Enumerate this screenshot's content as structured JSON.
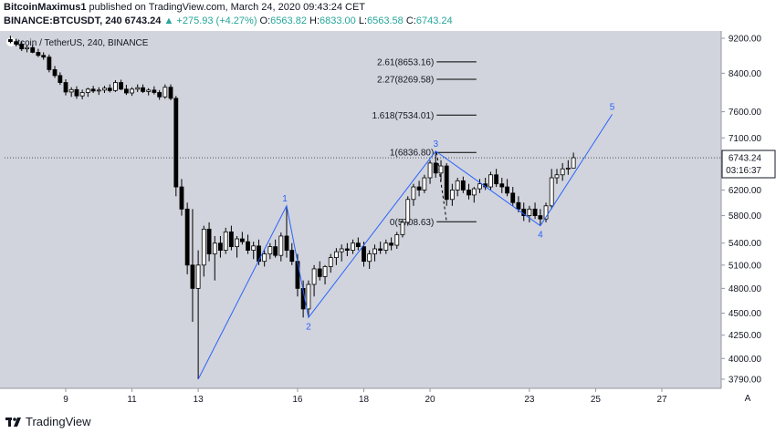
{
  "header": {
    "author": "BitcoinMaximus1",
    "published_text": "published on TradingView.com, March 24, 2020 09:43:24 CET",
    "symbol": "BINANCE:BTCUSDT, 240",
    "last": "6743.24",
    "change": "▲ +275.93 (+4.27%)",
    "o_label": "O:",
    "o_value": "6563.82",
    "h_label": "H:",
    "h_value": "6833.00",
    "l_label": "L:",
    "l_value": "6563.58",
    "c_label": "C:",
    "c_value": "6743.24"
  },
  "footer": {
    "brand": "TradingView"
  },
  "chart_data": {
    "type": "candlestick",
    "title": "itcoin / TetherUS, 240, BINANCE",
    "background": "#d1d4dc",
    "colors": {
      "up_fill": "#ffffff",
      "down_fill": "#000000",
      "outline": "#000000",
      "wave": "#2962ff",
      "fib": "#000000"
    },
    "x_ticks": [
      {
        "day": 9,
        "label": "9"
      },
      {
        "day": 11,
        "label": "11"
      },
      {
        "day": 13,
        "label": "13"
      },
      {
        "day": 16,
        "label": "16"
      },
      {
        "day": 18,
        "label": "18"
      },
      {
        "day": 20,
        "label": "20"
      },
      {
        "day": 23,
        "label": "23"
      },
      {
        "day": 25,
        "label": "25"
      },
      {
        "day": 27,
        "label": "27"
      }
    ],
    "x_range_days": [
      7.0,
      29.2
    ],
    "y_ticks": [
      {
        "value": 9200,
        "label": "9200.00"
      },
      {
        "value": 8400,
        "label": "8400.00"
      },
      {
        "value": 7600,
        "label": "7600.00"
      },
      {
        "value": 7100,
        "label": "7100.00"
      },
      {
        "value": 6200,
        "label": "6200.00"
      },
      {
        "value": 5800,
        "label": "5800.00"
      },
      {
        "value": 5400,
        "label": "5400.00"
      },
      {
        "value": 5100,
        "label": "5100.00"
      },
      {
        "value": 4800,
        "label": "4800.00"
      },
      {
        "value": 4500,
        "label": "4500.00"
      },
      {
        "value": 4250,
        "label": "4250.00"
      },
      {
        "value": 4000,
        "label": "4000.00"
      },
      {
        "value": 3790,
        "label": "3790.00"
      }
    ],
    "y_scale": "log",
    "last_price": {
      "label": "6743.24",
      "countdown": "03:16:37",
      "value": 6743.24
    },
    "axis_auto_label": "A",
    "candles": [
      {
        "t": 7.33,
        "o": 9170,
        "h": 9260,
        "l": 9080,
        "c": 9120
      },
      {
        "t": 7.5,
        "o": 9120,
        "h": 9180,
        "l": 9010,
        "c": 9060
      },
      {
        "t": 7.67,
        "o": 9060,
        "h": 9120,
        "l": 8900,
        "c": 8950
      },
      {
        "t": 7.83,
        "o": 8950,
        "h": 9030,
        "l": 8870,
        "c": 8980
      },
      {
        "t": 8.0,
        "o": 8980,
        "h": 9050,
        "l": 8850,
        "c": 8870
      },
      {
        "t": 8.17,
        "o": 8870,
        "h": 8950,
        "l": 8760,
        "c": 8800
      },
      {
        "t": 8.33,
        "o": 8800,
        "h": 8870,
        "l": 8700,
        "c": 8760
      },
      {
        "t": 8.5,
        "o": 8760,
        "h": 8820,
        "l": 8420,
        "c": 8480
      },
      {
        "t": 8.67,
        "o": 8480,
        "h": 8560,
        "l": 8300,
        "c": 8350
      },
      {
        "t": 8.83,
        "o": 8350,
        "h": 8420,
        "l": 8150,
        "c": 8200
      },
      {
        "t": 9.0,
        "o": 8200,
        "h": 8270,
        "l": 7930,
        "c": 8000
      },
      {
        "t": 9.17,
        "o": 8000,
        "h": 8100,
        "l": 7900,
        "c": 8050
      },
      {
        "t": 9.33,
        "o": 8050,
        "h": 8120,
        "l": 7860,
        "c": 7920
      },
      {
        "t": 9.5,
        "o": 7920,
        "h": 8050,
        "l": 7850,
        "c": 7990
      },
      {
        "t": 9.67,
        "o": 7990,
        "h": 8090,
        "l": 7900,
        "c": 8060
      },
      {
        "t": 9.83,
        "o": 8060,
        "h": 8130,
        "l": 7980,
        "c": 8020
      },
      {
        "t": 10.0,
        "o": 8020,
        "h": 8100,
        "l": 7940,
        "c": 8040
      },
      {
        "t": 10.17,
        "o": 8040,
        "h": 8130,
        "l": 7980,
        "c": 8080
      },
      {
        "t": 10.33,
        "o": 8080,
        "h": 8160,
        "l": 7990,
        "c": 8030
      },
      {
        "t": 10.5,
        "o": 8030,
        "h": 8250,
        "l": 8000,
        "c": 8200
      },
      {
        "t": 10.67,
        "o": 8200,
        "h": 8260,
        "l": 8040,
        "c": 8060
      },
      {
        "t": 10.83,
        "o": 8060,
        "h": 8150,
        "l": 7940,
        "c": 7980
      },
      {
        "t": 11.0,
        "o": 7980,
        "h": 8100,
        "l": 7920,
        "c": 8060
      },
      {
        "t": 11.17,
        "o": 8060,
        "h": 8160,
        "l": 8000,
        "c": 8090
      },
      {
        "t": 11.33,
        "o": 8090,
        "h": 8160,
        "l": 7980,
        "c": 8010
      },
      {
        "t": 11.5,
        "o": 8010,
        "h": 8080,
        "l": 7930,
        "c": 8040
      },
      {
        "t": 11.67,
        "o": 8040,
        "h": 8120,
        "l": 7950,
        "c": 7990
      },
      {
        "t": 11.83,
        "o": 7990,
        "h": 8040,
        "l": 7840,
        "c": 7900
      },
      {
        "t": 12.0,
        "o": 7900,
        "h": 8160,
        "l": 7860,
        "c": 8100
      },
      {
        "t": 12.17,
        "o": 8100,
        "h": 8160,
        "l": 7830,
        "c": 7870
      },
      {
        "t": 12.33,
        "o": 7870,
        "h": 7920,
        "l": 6100,
        "c": 6250
      },
      {
        "t": 12.5,
        "o": 6250,
        "h": 6380,
        "l": 5800,
        "c": 5900
      },
      {
        "t": 12.67,
        "o": 5900,
        "h": 6000,
        "l": 4980,
        "c": 5100
      },
      {
        "t": 12.83,
        "o": 5100,
        "h": 5900,
        "l": 4400,
        "c": 4800
      },
      {
        "t": 13.0,
        "o": 4800,
        "h": 5300,
        "l": 3790,
        "c": 5100
      },
      {
        "t": 13.17,
        "o": 5100,
        "h": 5650,
        "l": 4950,
        "c": 5600
      },
      {
        "t": 13.33,
        "o": 5600,
        "h": 5700,
        "l": 5150,
        "c": 5250
      },
      {
        "t": 13.5,
        "o": 5250,
        "h": 5500,
        "l": 4900,
        "c": 5400
      },
      {
        "t": 13.67,
        "o": 5400,
        "h": 5500,
        "l": 5200,
        "c": 5300
      },
      {
        "t": 13.83,
        "o": 5300,
        "h": 5620,
        "l": 5250,
        "c": 5560
      },
      {
        "t": 14.0,
        "o": 5560,
        "h": 5650,
        "l": 5300,
        "c": 5350
      },
      {
        "t": 14.17,
        "o": 5350,
        "h": 5500,
        "l": 5200,
        "c": 5460
      },
      {
        "t": 14.33,
        "o": 5460,
        "h": 5560,
        "l": 5380,
        "c": 5420
      },
      {
        "t": 14.5,
        "o": 5420,
        "h": 5520,
        "l": 5250,
        "c": 5300
      },
      {
        "t": 14.67,
        "o": 5300,
        "h": 5420,
        "l": 5180,
        "c": 5360
      },
      {
        "t": 14.83,
        "o": 5360,
        "h": 5450,
        "l": 5100,
        "c": 5150
      },
      {
        "t": 15.0,
        "o": 5150,
        "h": 5300,
        "l": 5080,
        "c": 5250
      },
      {
        "t": 15.17,
        "o": 5250,
        "h": 5400,
        "l": 5180,
        "c": 5350
      },
      {
        "t": 15.33,
        "o": 5350,
        "h": 5450,
        "l": 5200,
        "c": 5230
      },
      {
        "t": 15.5,
        "o": 5230,
        "h": 5550,
        "l": 5150,
        "c": 5500
      },
      {
        "t": 15.67,
        "o": 5500,
        "h": 5950,
        "l": 5200,
        "c": 5300
      },
      {
        "t": 15.83,
        "o": 5300,
        "h": 5400,
        "l": 5100,
        "c": 5150
      },
      {
        "t": 16.0,
        "o": 5150,
        "h": 5250,
        "l": 4700,
        "c": 4800
      },
      {
        "t": 16.17,
        "o": 4800,
        "h": 4900,
        "l": 4450,
        "c": 4550
      },
      {
        "t": 16.33,
        "o": 4550,
        "h": 4900,
        "l": 4450,
        "c": 4850
      },
      {
        "t": 16.5,
        "o": 4850,
        "h": 5100,
        "l": 4700,
        "c": 5050
      },
      {
        "t": 16.67,
        "o": 5050,
        "h": 5150,
        "l": 4900,
        "c": 4950
      },
      {
        "t": 16.83,
        "o": 4950,
        "h": 5100,
        "l": 4850,
        "c": 5080
      },
      {
        "t": 17.0,
        "o": 5080,
        "h": 5250,
        "l": 5000,
        "c": 5200
      },
      {
        "t": 17.17,
        "o": 5200,
        "h": 5330,
        "l": 5100,
        "c": 5280
      },
      {
        "t": 17.33,
        "o": 5280,
        "h": 5380,
        "l": 5150,
        "c": 5320
      },
      {
        "t": 17.5,
        "o": 5320,
        "h": 5400,
        "l": 5220,
        "c": 5300
      },
      {
        "t": 17.67,
        "o": 5300,
        "h": 5450,
        "l": 5250,
        "c": 5400
      },
      {
        "t": 17.83,
        "o": 5400,
        "h": 5480,
        "l": 5300,
        "c": 5350
      },
      {
        "t": 18.0,
        "o": 5350,
        "h": 5420,
        "l": 5080,
        "c": 5150
      },
      {
        "t": 18.17,
        "o": 5150,
        "h": 5300,
        "l": 5050,
        "c": 5250
      },
      {
        "t": 18.33,
        "o": 5250,
        "h": 5380,
        "l": 5150,
        "c": 5320
      },
      {
        "t": 18.5,
        "o": 5320,
        "h": 5420,
        "l": 5250,
        "c": 5300
      },
      {
        "t": 18.67,
        "o": 5300,
        "h": 5450,
        "l": 5250,
        "c": 5400
      },
      {
        "t": 18.83,
        "o": 5400,
        "h": 5480,
        "l": 5300,
        "c": 5370
      },
      {
        "t": 19.0,
        "o": 5370,
        "h": 5560,
        "l": 5320,
        "c": 5520
      },
      {
        "t": 19.17,
        "o": 5520,
        "h": 5750,
        "l": 5480,
        "c": 5700
      },
      {
        "t": 19.33,
        "o": 5700,
        "h": 6100,
        "l": 5650,
        "c": 6050
      },
      {
        "t": 19.5,
        "o": 6050,
        "h": 6300,
        "l": 5950,
        "c": 6250
      },
      {
        "t": 19.67,
        "o": 6250,
        "h": 6350,
        "l": 6100,
        "c": 6200
      },
      {
        "t": 19.83,
        "o": 6200,
        "h": 6450,
        "l": 6150,
        "c": 6400
      },
      {
        "t": 20.0,
        "o": 6400,
        "h": 6700,
        "l": 6300,
        "c": 6650
      },
      {
        "t": 20.17,
        "o": 6650,
        "h": 6860,
        "l": 6400,
        "c": 6480
      },
      {
        "t": 20.33,
        "o": 6480,
        "h": 6700,
        "l": 6350,
        "c": 6600
      },
      {
        "t": 20.5,
        "o": 6600,
        "h": 6650,
        "l": 5950,
        "c": 6050
      },
      {
        "t": 20.67,
        "o": 6050,
        "h": 6300,
        "l": 5950,
        "c": 6200
      },
      {
        "t": 20.83,
        "o": 6200,
        "h": 6400,
        "l": 6100,
        "c": 6350
      },
      {
        "t": 21.0,
        "o": 6350,
        "h": 6420,
        "l": 6150,
        "c": 6200
      },
      {
        "t": 21.17,
        "o": 6200,
        "h": 6300,
        "l": 6050,
        "c": 6120
      },
      {
        "t": 21.33,
        "o": 6120,
        "h": 6250,
        "l": 6000,
        "c": 6220
      },
      {
        "t": 21.5,
        "o": 6220,
        "h": 6380,
        "l": 6150,
        "c": 6300
      },
      {
        "t": 21.67,
        "o": 6300,
        "h": 6400,
        "l": 6200,
        "c": 6250
      },
      {
        "t": 21.83,
        "o": 6250,
        "h": 6500,
        "l": 6200,
        "c": 6450
      },
      {
        "t": 22.0,
        "o": 6450,
        "h": 6550,
        "l": 6250,
        "c": 6300
      },
      {
        "t": 22.17,
        "o": 6300,
        "h": 6400,
        "l": 6150,
        "c": 6250
      },
      {
        "t": 22.33,
        "o": 6250,
        "h": 6380,
        "l": 6100,
        "c": 6150
      },
      {
        "t": 22.5,
        "o": 6150,
        "h": 6250,
        "l": 5950,
        "c": 6000
      },
      {
        "t": 22.67,
        "o": 6000,
        "h": 6100,
        "l": 5850,
        "c": 5900
      },
      {
        "t": 22.83,
        "o": 5900,
        "h": 6000,
        "l": 5720,
        "c": 5800
      },
      {
        "t": 23.0,
        "o": 5800,
        "h": 5950,
        "l": 5700,
        "c": 5900
      },
      {
        "t": 23.17,
        "o": 5900,
        "h": 6000,
        "l": 5750,
        "c": 5800
      },
      {
        "t": 23.33,
        "o": 5800,
        "h": 5900,
        "l": 5650,
        "c": 5750
      },
      {
        "t": 23.5,
        "o": 5750,
        "h": 6000,
        "l": 5700,
        "c": 5950
      },
      {
        "t": 23.67,
        "o": 5950,
        "h": 6550,
        "l": 5900,
        "c": 6400
      },
      {
        "t": 23.83,
        "o": 6400,
        "h": 6550,
        "l": 6300,
        "c": 6450
      },
      {
        "t": 24.0,
        "o": 6450,
        "h": 6650,
        "l": 6350,
        "c": 6550
      },
      {
        "t": 24.17,
        "o": 6550,
        "h": 6700,
        "l": 6450,
        "c": 6564
      },
      {
        "t": 24.33,
        "o": 6564,
        "h": 6833,
        "l": 6564,
        "c": 6743
      }
    ],
    "wave": {
      "points": [
        {
          "t": 13.0,
          "v": 3790,
          "label": ""
        },
        {
          "t": 15.67,
          "v": 5950,
          "label": "1"
        },
        {
          "t": 16.33,
          "v": 4450,
          "label": "2"
        },
        {
          "t": 20.17,
          "v": 6860,
          "label": "3"
        },
        {
          "t": 23.33,
          "v": 5650,
          "label": "4"
        },
        {
          "t": 25.5,
          "v": 7550,
          "label": "5"
        }
      ]
    },
    "fib": {
      "anchor_start": {
        "t": 20.2,
        "v": 6836.8
      },
      "anchor_end": {
        "t": 20.5,
        "v": 5708.63
      },
      "t_from": 20.2,
      "t_to": 21.4,
      "levels": [
        {
          "value": 8653.16,
          "label": "2.61(8653.16)"
        },
        {
          "value": 8269.58,
          "label": "2.27(8269.58)"
        },
        {
          "value": 7534.01,
          "label": "1.618(7534.01)"
        },
        {
          "value": 6836.8,
          "label": "1(6836.80)"
        },
        {
          "value": 5708.63,
          "label": "0(5708.63)"
        }
      ]
    }
  }
}
